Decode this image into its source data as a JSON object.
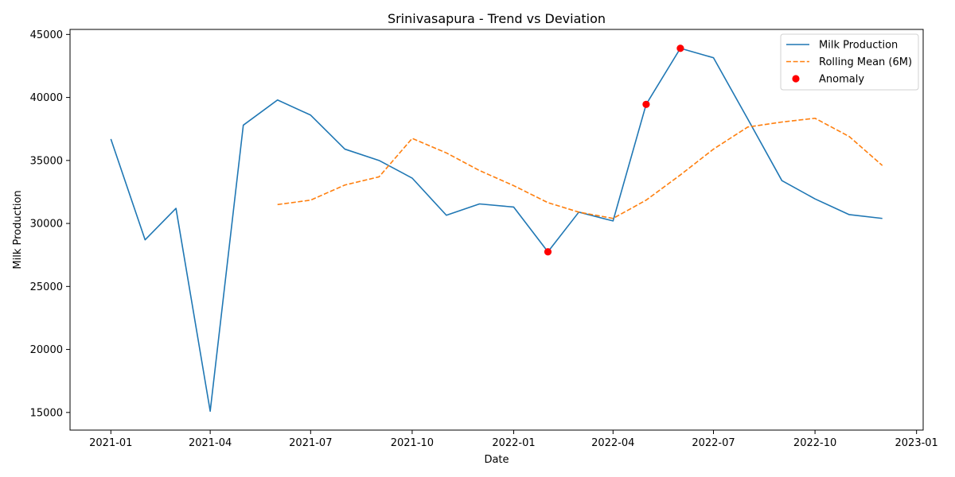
{
  "chart_data": {
    "type": "line",
    "title": "Srinivasapura - Trend vs Deviation",
    "xlabel": "Date",
    "ylabel": "Milk Production",
    "x_ticks": [
      "2021-01",
      "2021-04",
      "2021-07",
      "2021-10",
      "2022-01",
      "2022-04",
      "2022-07",
      "2022-10",
      "2023-01"
    ],
    "y_ticks": [
      15000,
      20000,
      25000,
      30000,
      35000,
      40000,
      45000
    ],
    "xlim": [
      "2020-11-25",
      "2023-01-07"
    ],
    "ylim": [
      13600,
      45400
    ],
    "grid": false,
    "legend_position": "top-right",
    "colors": {
      "production": "#1f77b4",
      "rolling": "#ff7f0e",
      "anomaly": "#ff0000"
    },
    "series": [
      {
        "name": "Milk Production",
        "style": "solid",
        "points": [
          [
            "2021-01-01",
            36700
          ],
          [
            "2021-02-01",
            28700
          ],
          [
            "2021-03-01",
            31200
          ],
          [
            "2021-04-01",
            15100
          ],
          [
            "2021-05-01",
            37800
          ],
          [
            "2021-06-01",
            39800
          ],
          [
            "2021-07-01",
            38600
          ],
          [
            "2021-08-01",
            35900
          ],
          [
            "2021-09-01",
            35000
          ],
          [
            "2021-10-01",
            33600
          ],
          [
            "2021-11-01",
            30650
          ],
          [
            "2021-12-01",
            31550
          ],
          [
            "2022-01-01",
            31300
          ],
          [
            "2022-02-01",
            27750
          ],
          [
            "2022-03-01",
            30900
          ],
          [
            "2022-04-01",
            30200
          ],
          [
            "2022-05-01",
            39450
          ],
          [
            "2022-06-01",
            43900
          ],
          [
            "2022-07-01",
            43150
          ],
          [
            "2022-08-01",
            38300
          ],
          [
            "2022-09-01",
            33400
          ],
          [
            "2022-10-01",
            31950
          ],
          [
            "2022-11-01",
            30700
          ],
          [
            "2022-12-01",
            30400
          ]
        ]
      },
      {
        "name": "Rolling Mean (6M)",
        "style": "dashed",
        "points": [
          [
            "2021-06-01",
            31500
          ],
          [
            "2021-07-01",
            31850
          ],
          [
            "2021-08-01",
            33050
          ],
          [
            "2021-09-01",
            33700
          ],
          [
            "2021-10-01",
            36750
          ],
          [
            "2021-11-01",
            35600
          ],
          [
            "2021-12-01",
            34200
          ],
          [
            "2022-01-01",
            33000
          ],
          [
            "2022-02-01",
            31650
          ],
          [
            "2022-03-01",
            30900
          ],
          [
            "2022-04-01",
            30400
          ],
          [
            "2022-05-01",
            31850
          ],
          [
            "2022-06-01",
            33850
          ],
          [
            "2022-07-01",
            35900
          ],
          [
            "2022-08-01",
            37650
          ],
          [
            "2022-09-01",
            38050
          ],
          [
            "2022-10-01",
            38350
          ],
          [
            "2022-11-01",
            36900
          ],
          [
            "2022-12-01",
            34600
          ]
        ]
      },
      {
        "name": "Anomaly",
        "style": "scatter",
        "points": [
          [
            "2022-02-01",
            27750
          ],
          [
            "2022-05-01",
            39450
          ],
          [
            "2022-06-01",
            43900
          ]
        ]
      }
    ]
  }
}
